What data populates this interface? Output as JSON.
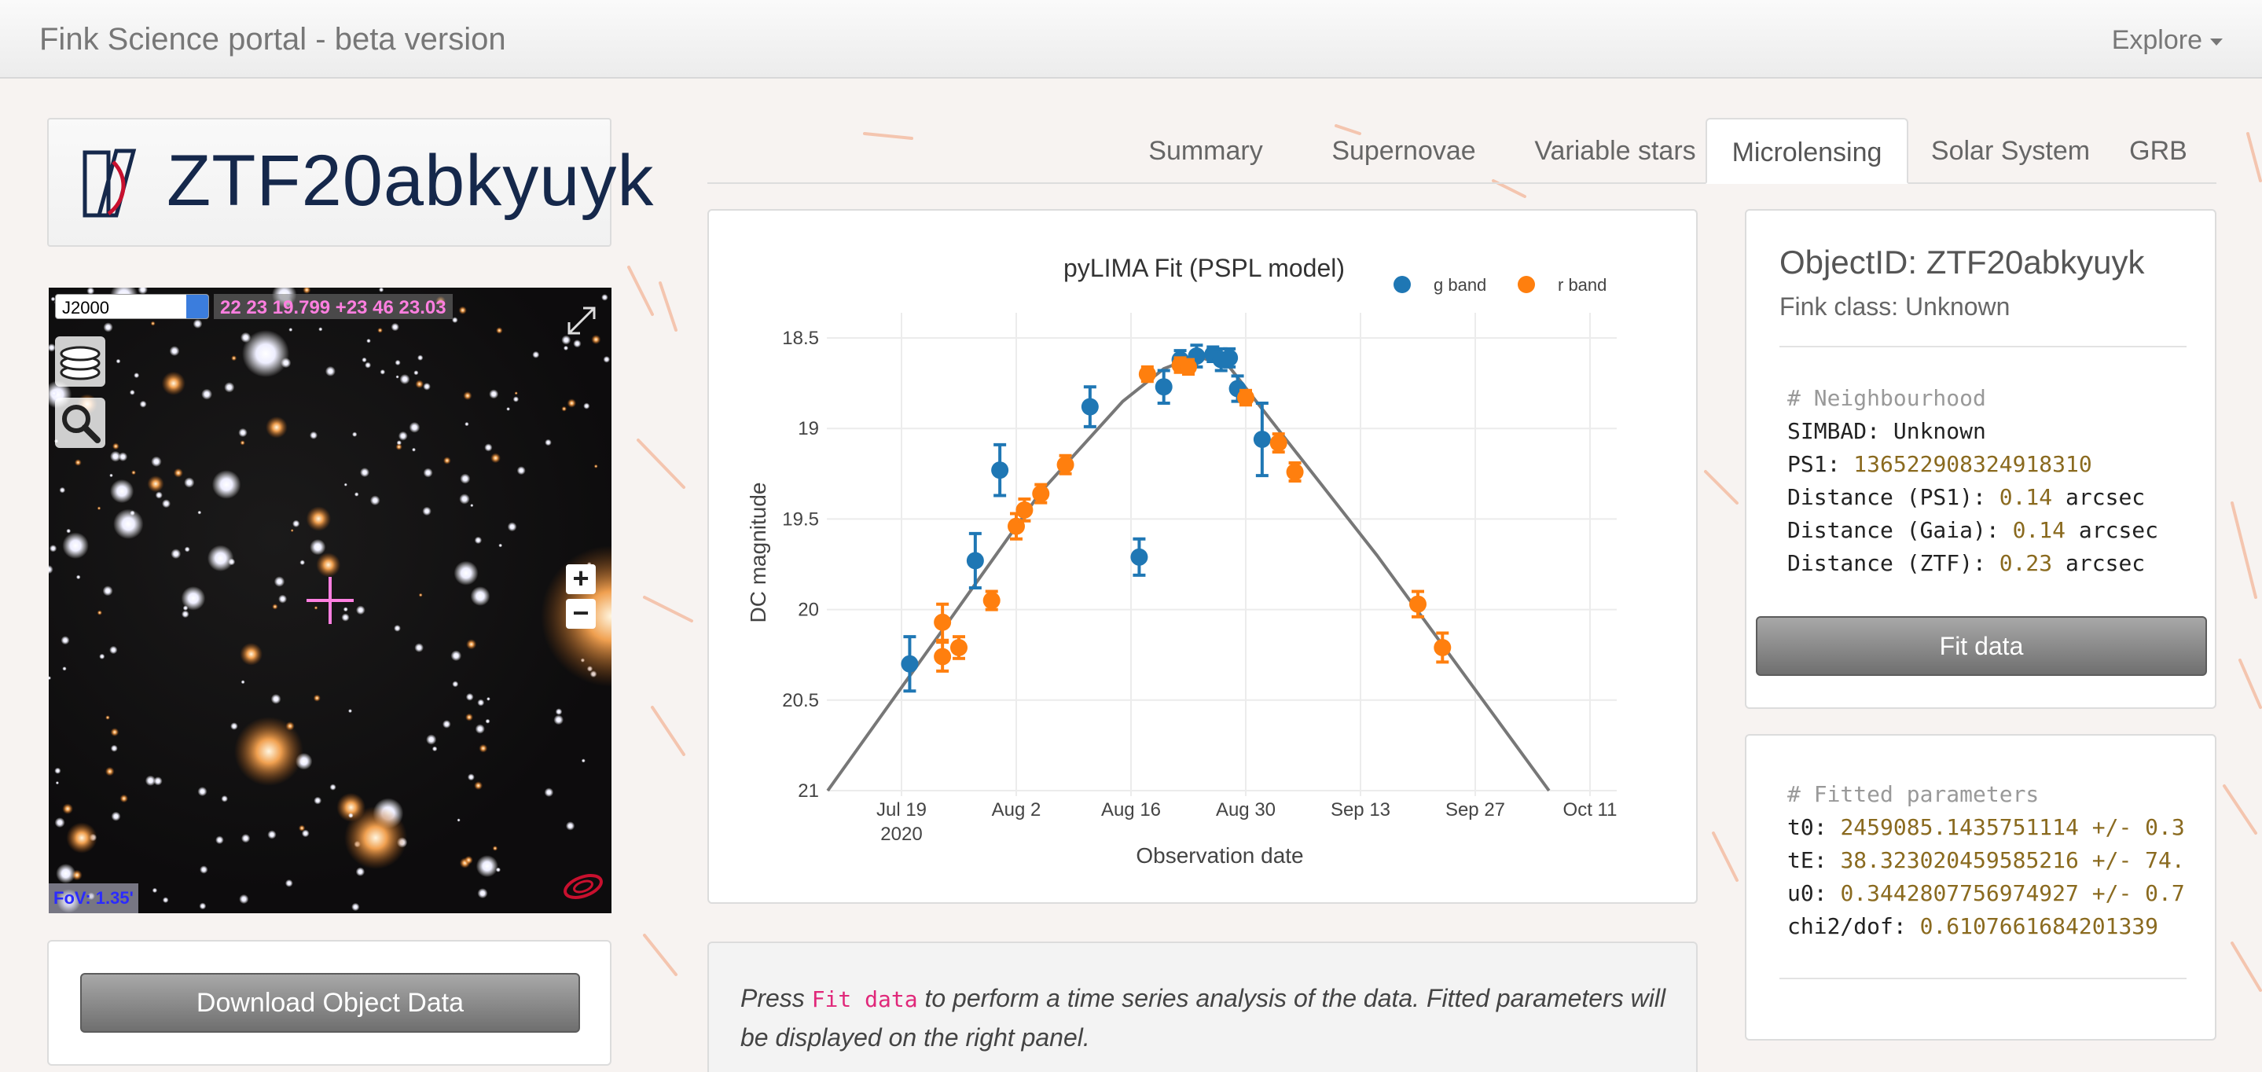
{
  "navbar": {
    "brand": "Fink Science portal - beta version",
    "explore": "Explore"
  },
  "object": {
    "name": "ZTF20abkyuyk"
  },
  "aladin": {
    "frame": "J2000",
    "coords": "22 23 19.799 +23 46 23.03",
    "fov": "FoV: 1.35'",
    "zoom_in": "+",
    "zoom_out": "−"
  },
  "download": {
    "label": "Download Object Data"
  },
  "tabs": [
    {
      "label": "Summary"
    },
    {
      "label": "Supernovae"
    },
    {
      "label": "Variable stars"
    },
    {
      "label": "Microlensing"
    },
    {
      "label": "Solar System"
    },
    {
      "label": "GRB"
    }
  ],
  "active_tab": "Microlensing",
  "chart_data": {
    "type": "scatter",
    "title": "pyLIMA Fit (PSPL model)",
    "xlabel": "Observation date",
    "ylabel": "DC magnitude",
    "x_ticks": [
      "Jul 19\n2020",
      "Aug 2",
      "Aug 16",
      "Aug 30",
      "Sep 13",
      "Sep 27",
      "Oct 11"
    ],
    "y_ticks": [
      "18.5",
      "19",
      "19.5",
      "20",
      "20.5",
      "21"
    ],
    "ylim": [
      21.0,
      18.4
    ],
    "y_reversed": true,
    "legend_position": "top-right",
    "series": [
      {
        "name": "g band",
        "color": "#1f77b4",
        "points": [
          {
            "x": "2020-07-20",
            "y": 20.3,
            "err": 0.15
          },
          {
            "x": "2020-07-28",
            "y": 19.73,
            "err": 0.15
          },
          {
            "x": "2020-07-31",
            "y": 19.23,
            "err": 0.14
          },
          {
            "x": "2020-08-11",
            "y": 18.88,
            "err": 0.11
          },
          {
            "x": "2020-08-17",
            "y": 19.71,
            "err": 0.1
          },
          {
            "x": "2020-08-20",
            "y": 18.77,
            "err": 0.09
          },
          {
            "x": "2020-08-22",
            "y": 18.62,
            "err": 0.05
          },
          {
            "x": "2020-08-24",
            "y": 18.6,
            "err": 0.06
          },
          {
            "x": "2020-08-26",
            "y": 18.59,
            "err": 0.04
          },
          {
            "x": "2020-08-27",
            "y": 18.62,
            "err": 0.06
          },
          {
            "x": "2020-08-28",
            "y": 18.61,
            "err": 0.05
          },
          {
            "x": "2020-08-29",
            "y": 18.78,
            "err": 0.07
          },
          {
            "x": "2020-09-01",
            "y": 19.06,
            "err": 0.2
          }
        ]
      },
      {
        "name": "r band",
        "color": "#ff7f0e",
        "points": [
          {
            "x": "2020-07-24",
            "y": 20.07,
            "err": 0.1
          },
          {
            "x": "2020-07-24",
            "y": 20.26,
            "err": 0.08
          },
          {
            "x": "2020-07-26",
            "y": 20.21,
            "err": 0.06
          },
          {
            "x": "2020-07-30",
            "y": 19.95,
            "err": 0.05
          },
          {
            "x": "2020-08-02",
            "y": 19.54,
            "err": 0.07
          },
          {
            "x": "2020-08-03",
            "y": 19.45,
            "err": 0.06
          },
          {
            "x": "2020-08-05",
            "y": 19.36,
            "err": 0.05
          },
          {
            "x": "2020-08-08",
            "y": 19.2,
            "err": 0.05
          },
          {
            "x": "2020-08-18",
            "y": 18.7,
            "err": 0.04
          },
          {
            "x": "2020-08-22",
            "y": 18.65,
            "err": 0.04
          },
          {
            "x": "2020-08-23",
            "y": 18.66,
            "err": 0.04
          },
          {
            "x": "2020-08-30",
            "y": 18.83,
            "err": 0.04
          },
          {
            "x": "2020-09-03",
            "y": 19.08,
            "err": 0.05
          },
          {
            "x": "2020-09-05",
            "y": 19.24,
            "err": 0.05
          },
          {
            "x": "2020-09-20",
            "y": 19.97,
            "err": 0.07
          },
          {
            "x": "2020-09-23",
            "y": 20.21,
            "err": 0.08
          }
        ]
      }
    ],
    "model": {
      "color": "#777777",
      "points": [
        {
          "x": "2020-07-10",
          "y": 21.0
        },
        {
          "x": "2020-07-25",
          "y": 20.05
        },
        {
          "x": "2020-08-05",
          "y": 19.35
        },
        {
          "x": "2020-08-15",
          "y": 18.85
        },
        {
          "x": "2020-08-20",
          "y": 18.67
        },
        {
          "x": "2020-08-24",
          "y": 18.6
        },
        {
          "x": "2020-08-28",
          "y": 18.66
        },
        {
          "x": "2020-09-02",
          "y": 18.95
        },
        {
          "x": "2020-09-15",
          "y": 19.7
        },
        {
          "x": "2020-10-06",
          "y": 21.0
        }
      ]
    }
  },
  "info": {
    "before": "Press ",
    "code": "Fit data",
    "after": " to perform a time series analysis of the data. Fitted parameters will be displayed on the right panel."
  },
  "object_panel": {
    "objectid": "ObjectID: ZTF20abkyuyk",
    "fink_class": "Fink class: Unknown",
    "neighbourhood_header": "# Neighbourhood",
    "simbad_label": "SIMBAD: ",
    "simbad_value": "Unknown",
    "ps1_label": "PS1: ",
    "ps1_value": "136522908324918310",
    "dist_ps1_label": "Distance (PS1): ",
    "dist_ps1_value": "0.14",
    "dist_gaia_label": "Distance (Gaia): ",
    "dist_gaia_value": "0.14",
    "dist_ztf_label": "Distance (ZTF): ",
    "dist_ztf_value": "0.23",
    "unit": " arcsec",
    "fit_button": "Fit data"
  },
  "fit_panel": {
    "header": "# Fitted parameters",
    "t0_label": "t0: ",
    "t0_value": "2459085.1435751114",
    "t0_err": " +/- 0.3",
    "tE_label": "tE: ",
    "tE_value": "38.323020459585216",
    "tE_err": " +/- 74.",
    "u0_label": "u0: ",
    "u0_value": "0.3442807756974927",
    "u0_err": " +/- 0.7",
    "chi2_label": "chi2/dof: ",
    "chi2_value": "0.6107661684201339"
  },
  "colors": {
    "navy": "#15284b",
    "g_band": "#1f77b4",
    "r_band": "#ff7f0e",
    "code_pink": "#e0287a",
    "number_gold": "#8a6a1f"
  }
}
